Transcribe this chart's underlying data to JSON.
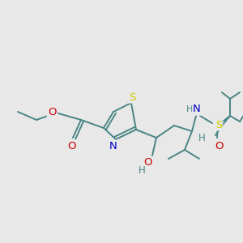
{
  "background_color": "#e8e8e8",
  "bond_color": "#4a8585",
  "bond_width": 1.4,
  "atom_colors": {
    "S": "#cccc00",
    "N": "#0000cc",
    "O": "#cc0000",
    "H": "#4a8585",
    "C": "#4a8585"
  },
  "font_size": 8.5,
  "figsize": [
    3.0,
    3.0
  ],
  "dpi": 100
}
